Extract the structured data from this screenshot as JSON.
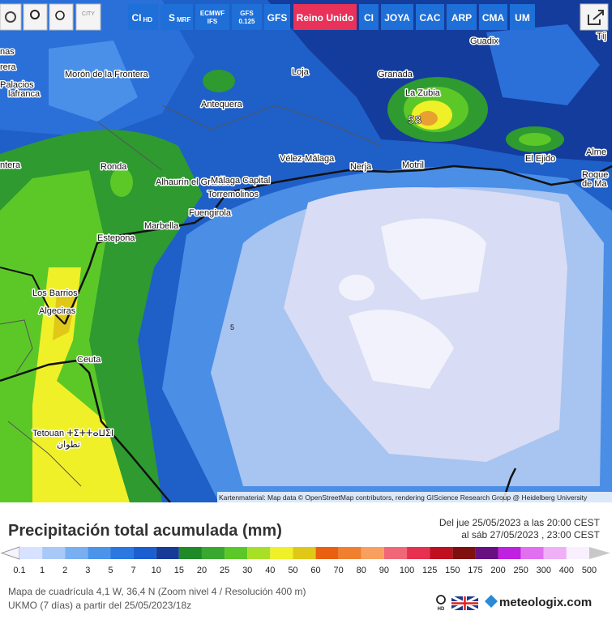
{
  "toolbar": {
    "city": "CITY",
    "buttons": [
      {
        "label": "CI",
        "sub": "HD"
      },
      {
        "label": "S",
        "sub": "MRF"
      },
      {
        "label": "ECMWF",
        "sub": "IFS"
      },
      {
        "label": "GFS",
        "sub": "0.125"
      },
      {
        "label": "GFS"
      },
      {
        "label": "Reino Unido"
      },
      {
        "label": "CI"
      },
      {
        "label": "JOYA"
      },
      {
        "label": "CAC"
      },
      {
        "label": "ARP"
      },
      {
        "label": "CMA"
      },
      {
        "label": "UM"
      }
    ]
  },
  "map": {
    "places": [
      "Granada",
      "La Zubia",
      "Guadix",
      "Loja",
      "Morón de la Frontera",
      "Palacios",
      "lafranca",
      "Antequera",
      "Ronda",
      "Alhaurín el Grande",
      "Málaga Capital",
      "Torremolinos",
      "Vélez-Málaga",
      "Nerja",
      "Motril",
      "El Ejido",
      "Alme",
      "Roque",
      "de Ma",
      "Fuengirola",
      "Marbella",
      "Estepona",
      "Los Barrios",
      "Algeciras",
      "Ceuta",
      "Tetouan ⵜⵉⵜⵜⴰⵡⵉⵏ",
      "تطوان",
      "Tíj",
      "rera",
      "ntera",
      "nas"
    ],
    "max_value": "58",
    "contour": "5",
    "attribution": "Kartenmaterial: Map data © OpenStreetMap contributors, rendering GIScience Research Group @ Heidelberg University"
  },
  "panel": {
    "title": "Precipitación total acumulada (mm)",
    "period_from": "Del jue 25/05/2023 a  las 20:00  CEST",
    "period_to": "al sáb 27/05/2023 , 23:00  CEST",
    "grid_info": "Mapa de cuadrícula 4,1 W, 36,4 N (Zoom nivel 4 / Resolución 400 m)",
    "model_info": "UKMO (7 días) a partir del 25/05/2023/18z",
    "hd": "HD",
    "brand": "meteologix.com"
  },
  "legend": {
    "items": [
      {
        "value": 0.1,
        "color": "#d6e2ff"
      },
      {
        "value": 1,
        "color": "#a8c8f8"
      },
      {
        "value": 2,
        "color": "#78aff0"
      },
      {
        "value": 3,
        "color": "#4c94ea"
      },
      {
        "value": 5,
        "color": "#2a78e0"
      },
      {
        "value": 7,
        "color": "#1a5ed0"
      },
      {
        "value": 10,
        "color": "#173c98"
      },
      {
        "value": 15,
        "color": "#1e8a28"
      },
      {
        "value": 20,
        "color": "#3aa830"
      },
      {
        "value": 25,
        "color": "#5cc828"
      },
      {
        "value": 30,
        "color": "#a8e028"
      },
      {
        "value": 40,
        "color": "#f0f028"
      },
      {
        "value": 50,
        "color": "#e0c818"
      },
      {
        "value": 60,
        "color": "#e86010"
      },
      {
        "value": 70,
        "color": "#f08030"
      },
      {
        "value": 80,
        "color": "#f8a060"
      },
      {
        "value": 90,
        "color": "#f06878"
      },
      {
        "value": 100,
        "color": "#e83050"
      },
      {
        "value": 125,
        "color": "#c01020"
      },
      {
        "value": 150,
        "color": "#801010"
      },
      {
        "value": 175,
        "color": "#681080"
      },
      {
        "value": 200,
        "color": "#c020e0"
      },
      {
        "value": 250,
        "color": "#e070f0"
      },
      {
        "value": 300,
        "color": "#f0b0f8"
      },
      {
        "value": 400,
        "color": "#f8f0ff"
      },
      {
        "value": 500,
        "color": "#c8c8c8"
      }
    ]
  }
}
